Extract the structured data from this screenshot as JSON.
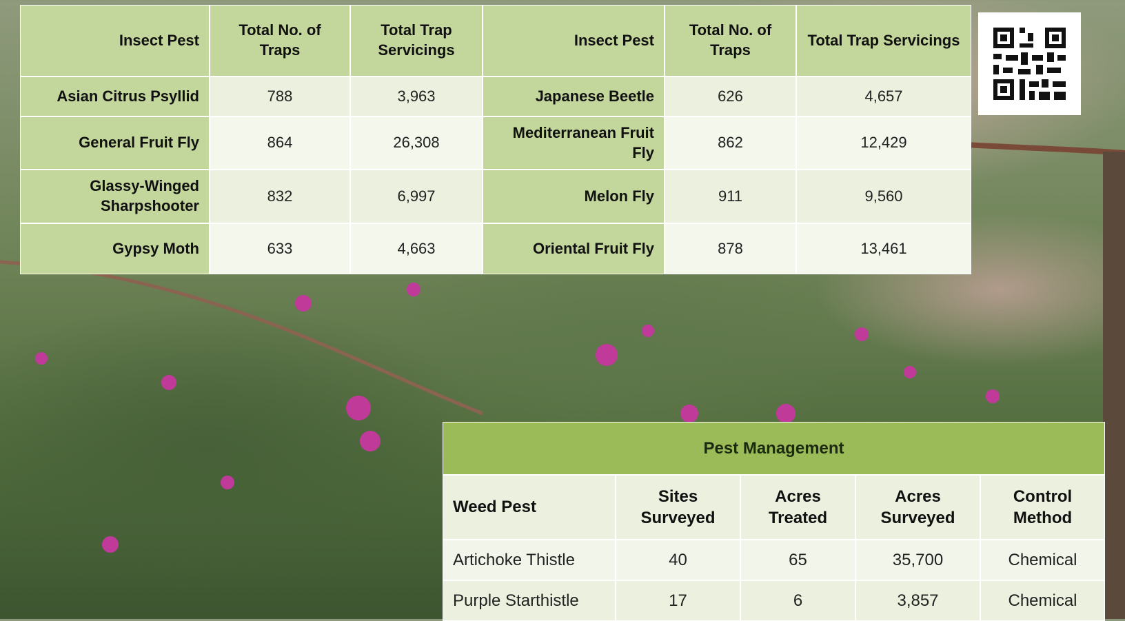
{
  "insect_table": {
    "header": [
      "Insect Pest",
      "Total No. of Traps",
      "Total Trap Servicings",
      "Insect Pest",
      "Total No. of Traps",
      "Total Trap Servicings"
    ],
    "rows": [
      [
        "Asian Citrus Psyllid",
        "788",
        "3,963",
        "Japanese Beetle",
        "626",
        "4,657"
      ],
      [
        "General Fruit Fly",
        "864",
        "26,308",
        "Mediterranean Fruit Fly",
        "862",
        "12,429"
      ],
      [
        "Glassy-Winged Sharpshooter",
        "832",
        "6,997",
        "Melon Fly",
        "911",
        "9,560"
      ],
      [
        "Gypsy Moth",
        "633",
        "4,663",
        "Oriental Fruit Fly",
        "878",
        "13,461"
      ]
    ]
  },
  "weed_table": {
    "title": "Pest Management",
    "header": [
      "Weed Pest",
      "Sites Surveyed",
      "Acres Treated",
      "Acres Surveyed",
      "Control Method"
    ],
    "rows": [
      [
        "Artichoke Thistle",
        "40",
        "65",
        "35,700",
        "Chemical"
      ],
      [
        "Purple Starthistle",
        "17",
        "6",
        "3,857",
        "Chemical"
      ]
    ]
  }
}
